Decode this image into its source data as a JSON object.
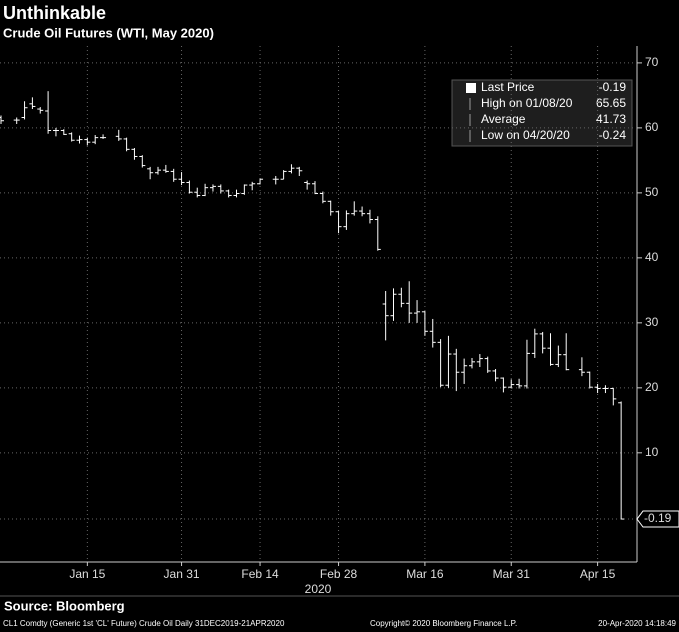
{
  "chart_data": {
    "type": "ohlc",
    "title": "Unthinkable",
    "subtitle": "Crude Oil Futures (WTI, May 2020)",
    "x_label": "2020",
    "categories": [
      null,
      null,
      null,
      null,
      null,
      null,
      null,
      null,
      null,
      null,
      null,
      "Jan 15",
      null,
      null,
      null,
      null,
      null,
      null,
      null,
      null,
      null,
      null,
      null,
      "Jan 31",
      null,
      null,
      null,
      null,
      null,
      null,
      null,
      null,
      null,
      "Feb 14",
      null,
      null,
      null,
      null,
      null,
      null,
      null,
      null,
      null,
      "Feb 28",
      null,
      null,
      null,
      null,
      null,
      null,
      null,
      null,
      null,
      null,
      "Mar 16",
      null,
      null,
      null,
      null,
      null,
      null,
      null,
      null,
      null,
      null,
      "Mar 31",
      null,
      null,
      null,
      null,
      null,
      null,
      null,
      null,
      null,
      null,
      "Apr 15",
      null,
      null,
      null
    ],
    "open": [
      61.6,
      null,
      61.2,
      61.6,
      63.7,
      62.9,
      62.6,
      59.6,
      59.6,
      59.1,
      58.1,
      58.2,
      57.8,
      58.5,
      null,
      58.7,
      58.3,
      56.7,
      55.6,
      53.7,
      53.1,
      53.5,
      53.3,
      52.1,
      51.6,
      50.1,
      49.6,
      50.8,
      51.0,
      50.3,
      49.6,
      49.9,
      51.2,
      51.4,
      null,
      52.1,
      52.1,
      53.3,
      53.8,
      51.6,
      51.4,
      49.9,
      48.7,
      47.1,
      44.8,
      46.8,
      47.2,
      46.8,
      45.9,
      32.9,
      31.1,
      34.4,
      33.0,
      31.5,
      31.7,
      28.7,
      27.0,
      20.4,
      25.2,
      22.4,
      23.4,
      24.0,
      24.5,
      22.6,
      21.5,
      20.1,
      20.5,
      20.3,
      25.3,
      28.3,
      26.1,
      23.6,
      25.1,
      null,
      22.8,
      22.4,
      20.1,
      19.9,
      19.9,
      17.7
    ],
    "high": [
      61.9,
      null,
      61.6,
      64.1,
      64.7,
      63.2,
      65.65,
      60.0,
      59.8,
      59.3,
      58.8,
      58.5,
      58.9,
      59.0,
      null,
      59.7,
      58.5,
      56.9,
      55.8,
      54.0,
      54.0,
      54.3,
      53.7,
      53.2,
      51.9,
      50.8,
      51.4,
      51.3,
      51.3,
      50.5,
      50.5,
      51.3,
      51.7,
      52.2,
      null,
      52.6,
      53.5,
      54.4,
      54.0,
      51.9,
      51.8,
      50.2,
      48.8,
      47.2,
      47.3,
      48.7,
      47.9,
      47.4,
      46.4,
      34.9,
      35.3,
      35.4,
      36.4,
      33.5,
      31.8,
      30.6,
      27.5,
      28.0,
      26.0,
      24.5,
      24.6,
      25.2,
      24.8,
      22.9,
      21.6,
      21.3,
      21.4,
      27.4,
      29.1,
      28.6,
      28.4,
      26.5,
      28.4,
      null,
      24.7,
      22.5,
      20.6,
      20.4,
      20.0,
      17.9
    ],
    "low": [
      60.6,
      null,
      60.6,
      61.3,
      62.9,
      62.2,
      59.1,
      58.7,
      58.9,
      57.9,
      57.6,
      57.3,
      57.5,
      58.3,
      null,
      58.0,
      56.4,
      55.1,
      53.9,
      52.1,
      52.8,
      53.1,
      51.7,
      51.2,
      49.9,
      49.3,
      49.5,
      50.2,
      49.9,
      49.3,
      49.3,
      49.7,
      50.4,
      51.3,
      null,
      51.3,
      52.1,
      53.0,
      52.6,
      50.5,
      49.8,
      48.4,
      46.5,
      43.8,
      44.3,
      46.5,
      46.4,
      45.3,
      41.1,
      27.3,
      30.3,
      32.4,
      30.0,
      30.0,
      28.0,
      26.2,
      20.1,
      20.0,
      19.5,
      20.6,
      23.0,
      23.2,
      22.3,
      21.0,
      19.3,
      19.9,
      19.9,
      19.9,
      24.6,
      25.3,
      23.4,
      23.2,
      22.7,
      null,
      21.8,
      19.9,
      19.2,
      19.2,
      17.3,
      -0.24
    ],
    "close": [
      61.1,
      null,
      61.2,
      63.1,
      63.3,
      62.7,
      59.6,
      59.6,
      59.0,
      58.1,
      58.2,
      57.8,
      58.5,
      58.5,
      null,
      58.3,
      56.7,
      55.6,
      54.2,
      53.1,
      53.5,
      53.3,
      52.1,
      51.6,
      50.1,
      49.6,
      50.8,
      51.0,
      50.3,
      49.6,
      49.9,
      51.2,
      51.4,
      52.1,
      null,
      52.1,
      53.3,
      53.8,
      53.4,
      51.4,
      49.9,
      48.7,
      47.1,
      44.8,
      46.8,
      47.2,
      46.8,
      45.9,
      41.3,
      31.1,
      34.4,
      33.0,
      31.5,
      31.7,
      28.7,
      27.0,
      20.4,
      25.2,
      22.4,
      23.4,
      24.0,
      24.5,
      22.6,
      21.5,
      20.1,
      20.5,
      20.3,
      25.3,
      28.3,
      26.1,
      23.6,
      25.1,
      22.8,
      null,
      22.4,
      20.1,
      19.9,
      19.9,
      18.3,
      -0.19
    ],
    "color": "#ffffff",
    "ylim": [
      -6.8,
      72.6
    ],
    "yticks": [
      10,
      20,
      30,
      40,
      50,
      60,
      70
    ],
    "grid": true,
    "legend": [
      {
        "label": "Last Price",
        "value": "-0.19"
      },
      {
        "label": "High on 01/08/20",
        "value": "65.65"
      },
      {
        "label": "Average",
        "value": "41.73"
      },
      {
        "label": "Low on 04/20/20",
        "value": "-0.24"
      }
    ],
    "source": "Source: Bloomberg",
    "footer_left": "CL1 Comdty (Generic 1st 'CL' Future) Crude Oil  Daily 31DEC2019-21APR2020",
    "footer_mid": "Copyright© 2020 Bloomberg Finance L.P.",
    "footer_right": "20-Apr-2020 14:18:49"
  }
}
